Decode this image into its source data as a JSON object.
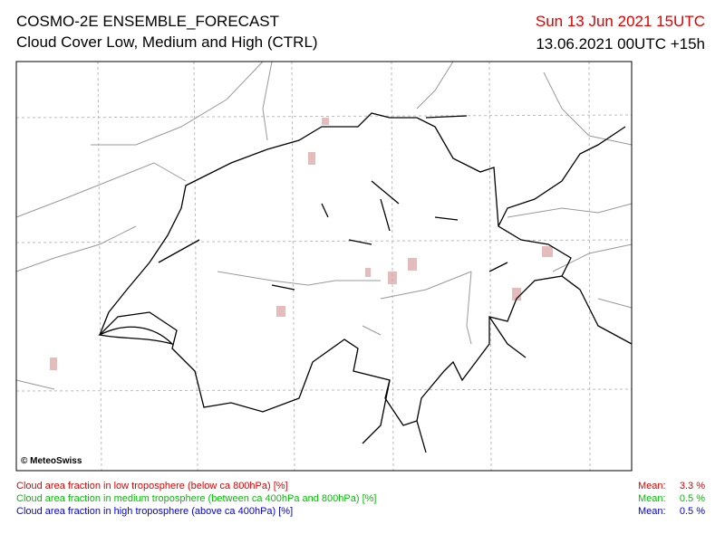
{
  "header": {
    "title": "COSMO-2E ENSEMBLE_FORECAST",
    "subtitle": "Cloud Cover Low, Medium and High (CTRL)",
    "valid_time": "Sun 13 Jun 2021 15UTC",
    "run": "13.06.2021 00UTC +15h"
  },
  "map": {
    "copyright": "© MeteoSwiss"
  },
  "legend": [
    {
      "label": "Cloud area fraction in low troposphere (below ca 800hPa) [%]",
      "mean_label": "Mean:",
      "mean": "3.3 %",
      "color": "#e00000"
    },
    {
      "label": "Cloud area fraction in medium troposphere (between ca 400hPa and 800hPa) [%]",
      "mean_label": "Mean:",
      "mean": "0.5 %",
      "color": "#00c000"
    },
    {
      "label": "Cloud area fraction in high troposphere (above ca 400hPa) [%]",
      "mean_label": "Mean:",
      "mean": "0.5 %",
      "color": "#0000e0"
    }
  ]
}
